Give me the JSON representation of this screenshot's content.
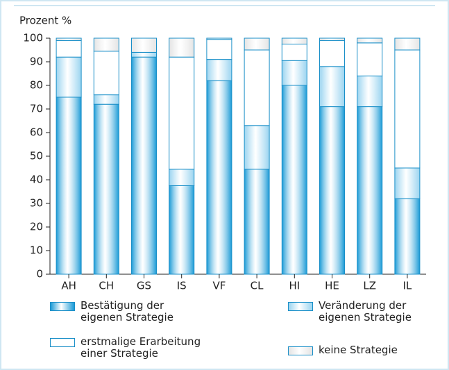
{
  "chart_data": {
    "type": "stacked_bar",
    "y_label": "Prozent %",
    "categories": [
      "AH",
      "CH",
      "GS",
      "IS",
      "VF",
      "CL",
      "HI",
      "HE",
      "LZ",
      "IL"
    ],
    "series": [
      {
        "name": "Bestätigung der eigenen Strategie",
        "color": "#1a9ad6",
        "values": [
          75,
          72,
          92,
          37.5,
          82,
          44.5,
          80,
          71,
          71,
          32
        ]
      },
      {
        "name": "Veränderung der eigenen Strategie",
        "color": "#9ad4f0",
        "values": [
          17,
          4,
          2,
          7,
          9,
          18.5,
          10.5,
          17,
          13,
          13
        ]
      },
      {
        "name": "erstmalige Erarbeitung einer Strategie",
        "color": "#ffffff",
        "values": [
          7,
          18.5,
          0,
          47.5,
          8.5,
          32,
          7,
          11,
          14,
          50
        ]
      },
      {
        "name": "keine Strategie",
        "color": "#e4e4e4",
        "values": [
          1,
          5.5,
          6,
          8,
          0.5,
          5,
          2.5,
          1,
          2,
          5
        ]
      }
    ],
    "ylim": [
      0,
      100
    ],
    "yticks": [
      0,
      10,
      20,
      30,
      40,
      50,
      60,
      70,
      80,
      90,
      100
    ]
  }
}
